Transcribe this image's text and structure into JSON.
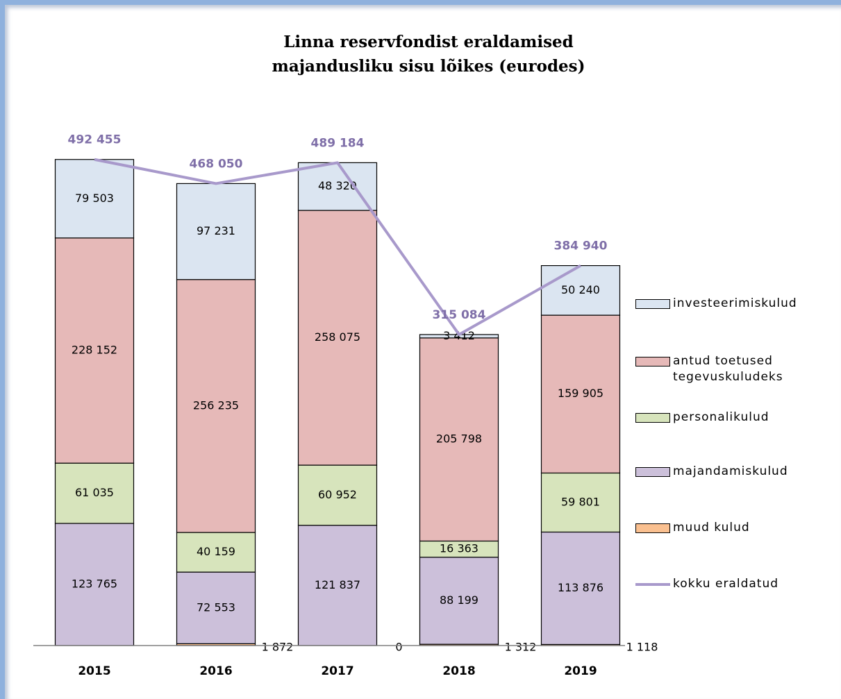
{
  "chart_data": {
    "type": "bar",
    "stacked": true,
    "title": [
      "Linna reservfondist eraldamised",
      "majandusliku sisu lõikes (eurodes)"
    ],
    "categories": [
      "2015",
      "2016",
      "2017",
      "2018",
      "2019"
    ],
    "ylim": [
      0,
      500000
    ],
    "series": [
      {
        "name": "muud kulud",
        "color": "#fac090",
        "values": [
          0,
          1872,
          0,
          1312,
          1118
        ],
        "value_labels": [
          null,
          "1 872",
          "0",
          "1 312",
          "1 118"
        ],
        "label_position": "outside"
      },
      {
        "name": "majandamiskulud",
        "color": "#ccc0da",
        "values": [
          123765,
          72553,
          121837,
          88199,
          113876
        ],
        "value_labels": [
          "123 765",
          "72 553",
          "121 837",
          "88 199",
          "113 876"
        ]
      },
      {
        "name": "personalikulud",
        "color": "#d7e4bc",
        "values": [
          61035,
          40159,
          60952,
          16363,
          59801
        ],
        "value_labels": [
          "61 035",
          "40 159",
          "60 952",
          "16 363",
          "59 801"
        ]
      },
      {
        "name": "antud toetused tegevuskuludeks",
        "color": "#e6b9b8",
        "values": [
          228152,
          256235,
          258075,
          205798,
          159905
        ],
        "value_labels": [
          "228 152",
          "256 235",
          "258 075",
          "205 798",
          "159 905"
        ]
      },
      {
        "name": "investeerimiskulud",
        "color": "#dbe5f1",
        "values": [
          79503,
          97231,
          48320,
          3412,
          50240
        ],
        "value_labels": [
          "79 503",
          "97 231",
          "48 320",
          "3 412",
          "50 240"
        ]
      },
      {
        "name": "kokku eraldatud",
        "type": "line",
        "color": "#a899cb",
        "values": [
          492455,
          468050,
          489184,
          315084,
          384940
        ],
        "value_labels": [
          "492 455",
          "468 050",
          "489 184",
          "315 084",
          "384 940"
        ]
      }
    ],
    "legend": "right"
  }
}
